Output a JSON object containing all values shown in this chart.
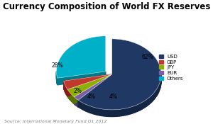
{
  "title": "Currency Composition of World FX Reserves",
  "source": "Source: International Monetary Fund Q1 2012",
  "labels": [
    "USD",
    "EUR",
    "JPY",
    "GBP",
    "Others"
  ],
  "values": [
    62,
    2,
    4,
    4,
    28
  ],
  "colors": [
    "#1f3864",
    "#7b5ea7",
    "#8db000",
    "#c0392b",
    "#00b0c8"
  ],
  "dark_colors": [
    "#142544",
    "#4e3c6e",
    "#5a7300",
    "#8b1a1a",
    "#007a8a"
  ],
  "pct_labels": [
    "62%",
    "2%",
    "4%",
    "4%",
    "28%"
  ],
  "legend_order": [
    "USD",
    "GBP",
    "JPY",
    "EUR",
    "Others"
  ],
  "legend_colors": [
    "#1f3864",
    "#c0392b",
    "#8db000",
    "#7b5ea7",
    "#00b0c8"
  ],
  "explode_others": true,
  "background_color": "#ffffff",
  "title_fontsize": 8.5,
  "source_fontsize": 4.5
}
